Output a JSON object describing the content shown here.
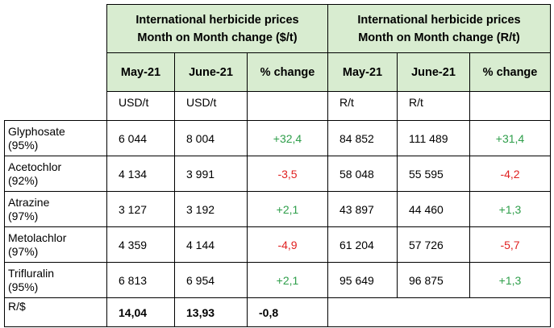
{
  "groups": [
    {
      "title_line1": "International herbicide prices",
      "title_line2": "Month on Month change  ($/t)"
    },
    {
      "title_line1": "International herbicide prices",
      "title_line2": "Month on Month change  (R/t)"
    }
  ],
  "columns": [
    "May-21",
    "June-21",
    "% change",
    "May-21",
    "June-21",
    "% change"
  ],
  "units": [
    "USD/t",
    "USD/t",
    "",
    "R/t",
    "R/t",
    ""
  ],
  "rows": [
    {
      "product": "Glyphosate",
      "purity": "(95%)",
      "usd_may": "6 044",
      "usd_june": "8 004",
      "usd_pct": "+32,4",
      "r_may": "84 852",
      "r_june": "111 489",
      "r_pct": "+31,4"
    },
    {
      "product": "Acetochlor",
      "purity": "(92%)",
      "usd_may": "4 134",
      "usd_june": "3 991",
      "usd_pct": "-3,5",
      "r_may": "58 048",
      "r_june": "55 595",
      "r_pct": "-4,2"
    },
    {
      "product": "Atrazine",
      "purity": "(97%)",
      "usd_may": "3 127",
      "usd_june": "3 192",
      "usd_pct": "+2,1",
      "r_may": "43 897",
      "r_june": "44 460",
      "r_pct": "+1,3"
    },
    {
      "product": "Metolachlor",
      "purity": "(97%)",
      "usd_may": "4 359",
      "usd_june": "4 144",
      "usd_pct": "-4,9",
      "r_may": "61 204",
      "r_june": "57 726",
      "r_pct": "-5,7"
    },
    {
      "product": "Trifluralin",
      "purity": "(95%)",
      "usd_may": "6 813",
      "usd_june": "6 954",
      "usd_pct": "+2,1",
      "r_may": "95 649",
      "r_june": "96 875",
      "r_pct": "+1,3"
    }
  ],
  "exchange": {
    "label": "R/$",
    "may": "14,04",
    "june": "13,93",
    "pct": "-0,8"
  },
  "colors": {
    "header_bg": "#d8ecd0",
    "positive": "#2e9e4a",
    "negative": "#e02020"
  }
}
